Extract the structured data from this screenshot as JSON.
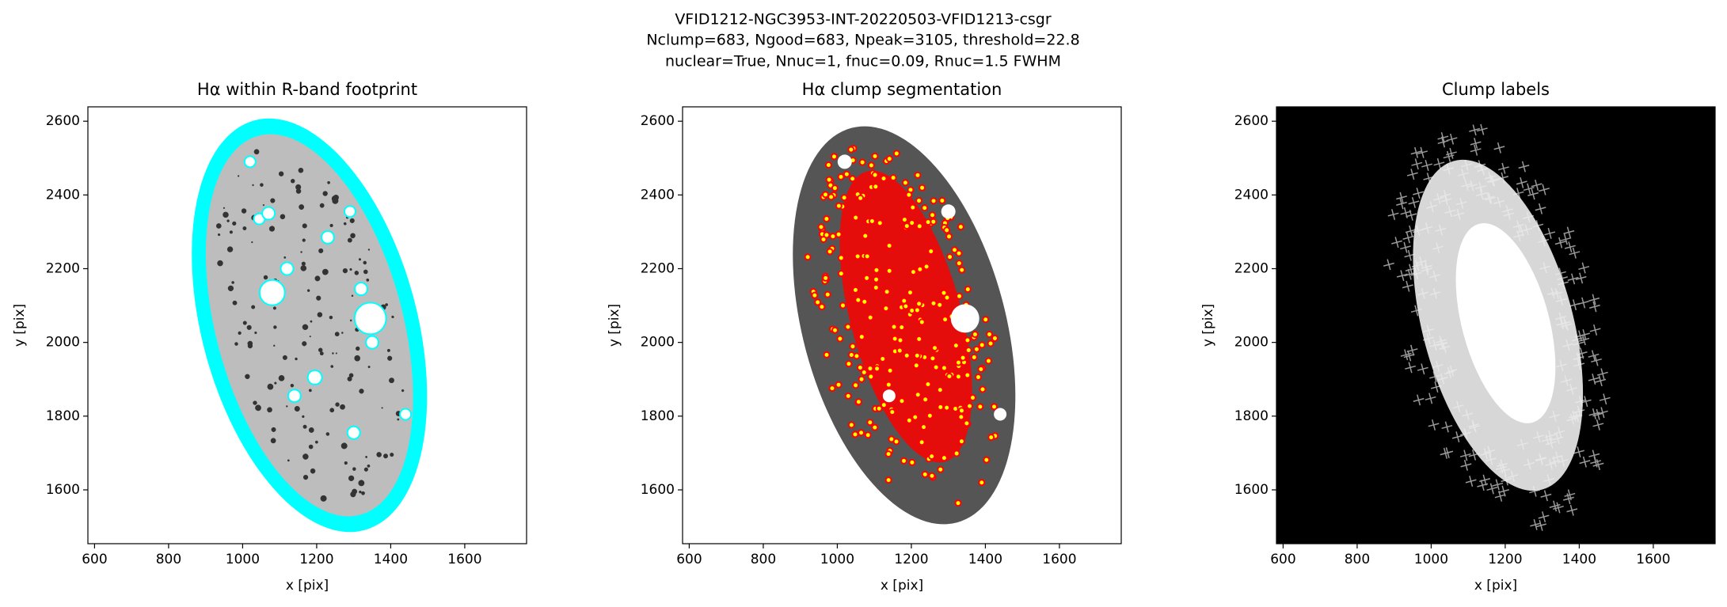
{
  "figure": {
    "title_lines": [
      "VFID1212-NGC3953-INT-20220503-VFID1213-csgr",
      "Nclump=683, Ngood=683, Npeak=3105, threshold=22.8",
      "nuclear=True, Nnuc=1, fnuc=0.09, Rnuc=1.5 FWHM"
    ]
  },
  "chart_data": [
    {
      "type": "image",
      "style": "footprint",
      "title": "Hα within R-band footprint",
      "xlabel": "x [pix]",
      "ylabel": "y [pix]",
      "xlim": [
        582,
        1767
      ],
      "ylim": [
        1454,
        2639
      ],
      "xticks": [
        600,
        800,
        1000,
        1200,
        1400,
        1600
      ],
      "yticks": [
        1600,
        1800,
        2000,
        2200,
        2400,
        2600
      ]
    },
    {
      "type": "image",
      "style": "segmentation",
      "title": "Hα clump segmentation",
      "xlabel": "x [pix]",
      "ylabel": "y [pix]",
      "xlim": [
        582,
        1767
      ],
      "ylim": [
        1454,
        2639
      ],
      "xticks": [
        600,
        800,
        1000,
        1200,
        1400,
        1600
      ],
      "yticks": [
        1600,
        1800,
        2000,
        2200,
        2400,
        2600
      ]
    },
    {
      "type": "image",
      "style": "labels",
      "title": "Clump labels",
      "xlabel": "x [pix]",
      "ylabel": "y [pix]",
      "xlim": [
        582,
        1767
      ],
      "ylim": [
        1454,
        2639
      ],
      "xticks": [
        600,
        800,
        1000,
        1200,
        1400,
        1600
      ],
      "yticks": [
        1600,
        1800,
        2000,
        2200,
        2400,
        2600
      ]
    }
  ]
}
